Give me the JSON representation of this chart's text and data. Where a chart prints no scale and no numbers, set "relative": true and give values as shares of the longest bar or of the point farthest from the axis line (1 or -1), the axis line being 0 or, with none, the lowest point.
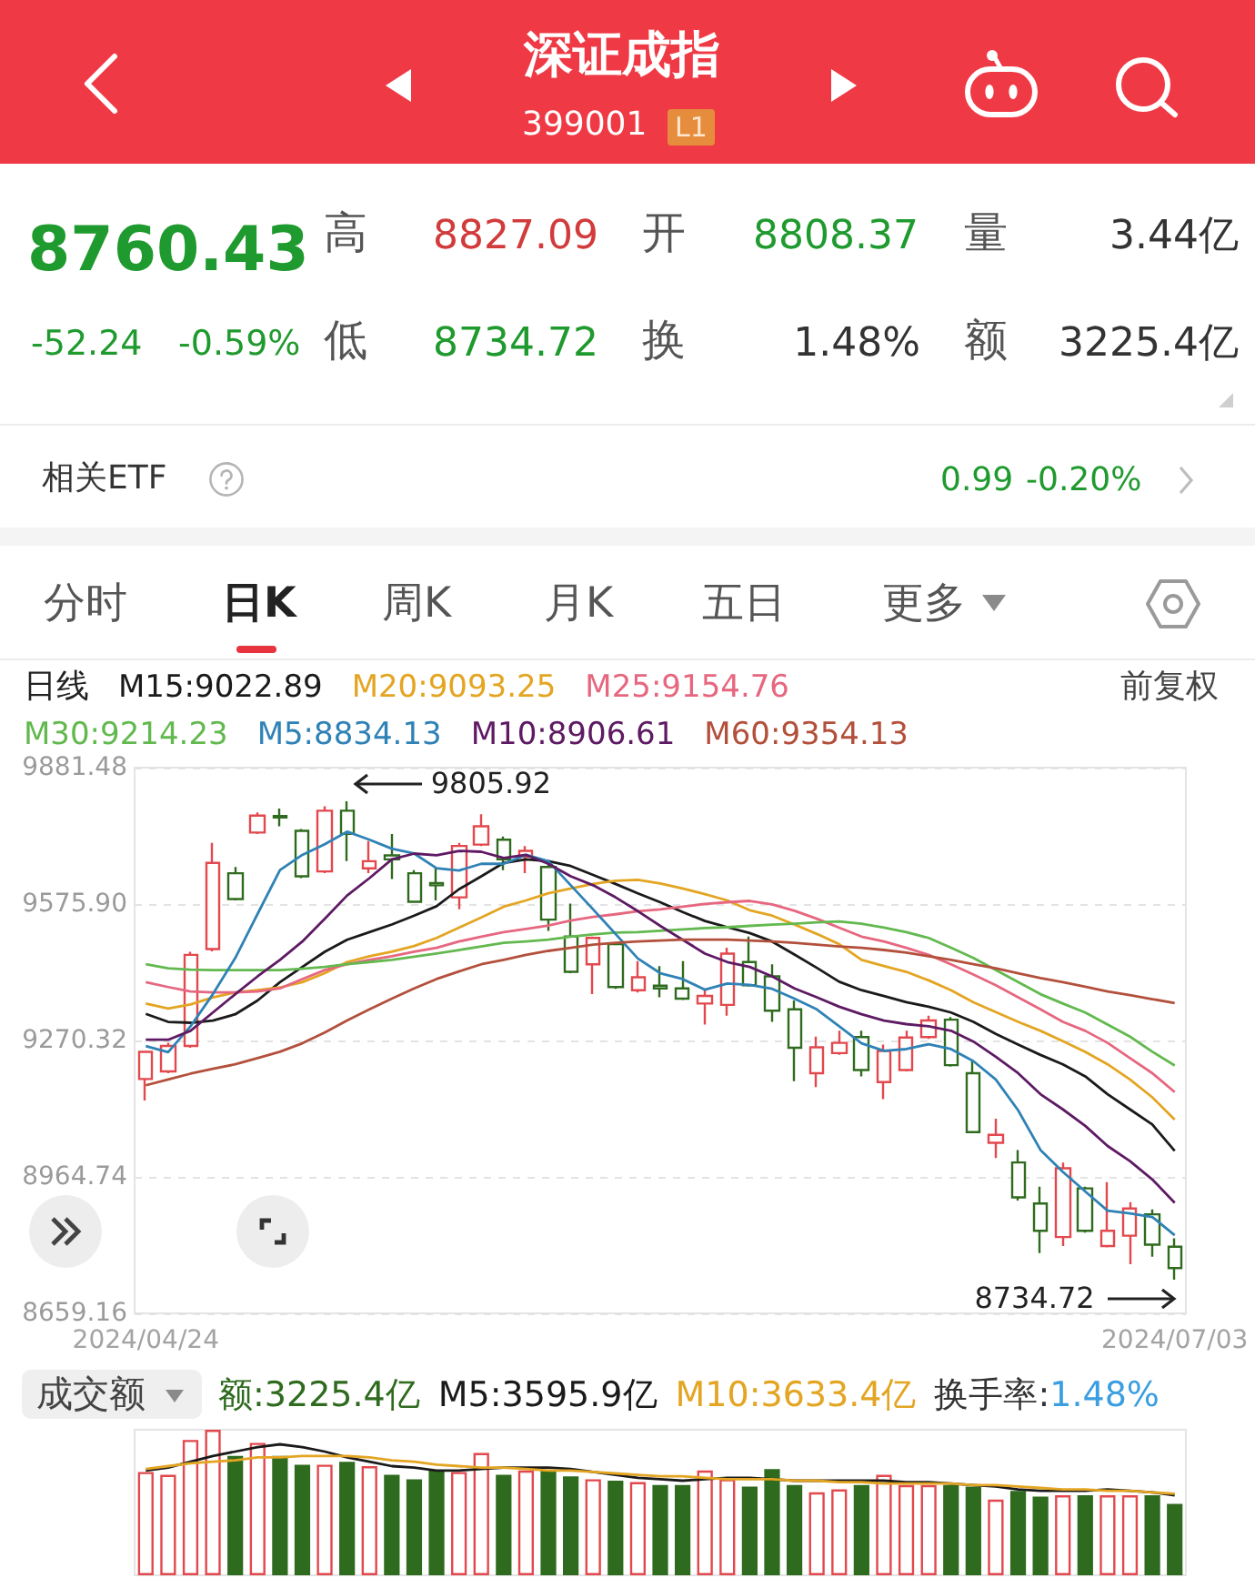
{
  "chart_data": [
    {
      "type": "other",
      "title": "深证成指",
      "subtitle": "399001",
      "annotations": [
        "L1",
        "8760.43",
        "-52.24",
        "-0.59%",
        "高",
        "8827.09",
        "开",
        "8808.37",
        "量",
        "3.44亿",
        "低",
        "8734.72",
        "换",
        "1.48%",
        "额",
        "3225.4亿",
        "相关ETF",
        "0.99",
        "-0.20%",
        "分时",
        "日K",
        "周K",
        "月K",
        "五日",
        "更多"
      ]
    },
    {
      "type": "candlestick",
      "legend_title": "日线",
      "legend": "top",
      "grid": "y",
      "marker": "none",
      "line_style": "solid",
      "categories": [
        "2024/04/24",
        null,
        null,
        null,
        null,
        null,
        null,
        null,
        null,
        null,
        null,
        null,
        null,
        null,
        null,
        null,
        null,
        null,
        null,
        null,
        null,
        null,
        null,
        null,
        null,
        null,
        null,
        null,
        null,
        null,
        null,
        null,
        null,
        null,
        null,
        null,
        null,
        null,
        null,
        null,
        null,
        null,
        null,
        null,
        null,
        null,
        "2024/07/03"
      ],
      "ylim": [
        8659.16,
        9881.48
      ],
      "yticks": [
        8659.16,
        8964.74,
        9270.32,
        {
          "value": 9575.9,
          "label": "9575.90"
        },
        9881.48
      ],
      "ohlc": [
        [
          9184,
          9247,
          9136,
          9245
        ],
        [
          9201,
          9265,
          9197,
          9258
        ],
        [
          9258,
          9469,
          9254,
          9462
        ],
        [
          9475,
          9713,
          9470,
          9668
        ],
        [
          9645,
          9659,
          9584,
          9587
        ],
        [
          9736,
          9781,
          9733,
          9774
        ],
        [
          9773,
          9790,
          9750,
          9770
        ],
        [
          9740,
          9744,
          9634,
          9638
        ],
        [
          9649,
          9795,
          9645,
          9785
        ],
        [
          9785,
          9805.92,
          9672,
          9733
        ],
        [
          9656,
          9717,
          9645,
          9672
        ],
        [
          9685,
          9733,
          9632,
          9676
        ],
        [
          9645,
          9652,
          9579,
          9581
        ],
        [
          9623,
          9659,
          9584,
          9618
        ],
        [
          9591,
          9713,
          9564,
          9706
        ],
        [
          9709,
          9777,
          9706,
          9750
        ],
        [
          9720,
          9727,
          9652,
          9676
        ],
        [
          9682,
          9706,
          9645,
          9695
        ],
        [
          9659,
          9666,
          9516,
          9541
        ],
        [
          9503,
          9577,
          9421,
          9424
        ],
        [
          9441,
          9503,
          9374,
          9500
        ],
        [
          9486,
          9489,
          9386,
          9390
        ],
        [
          9383,
          9448,
          9378,
          9412
        ],
        [
          9393,
          9437,
          9367,
          9387
        ],
        [
          9387,
          9448,
          9361,
          9364
        ],
        [
          9353,
          9387,
          9306,
          9370
        ],
        [
          9350,
          9478,
          9326,
          9465
        ],
        [
          9446,
          9503,
          9391,
          9394
        ],
        [
          9414,
          9441,
          9312,
          9337
        ],
        [
          9340,
          9360,
          9179,
          9254
        ],
        [
          9197,
          9279,
          9166,
          9255
        ],
        [
          9242,
          9292,
          9238,
          9265
        ],
        [
          9278,
          9292,
          9190,
          9204
        ],
        [
          9177,
          9261,
          9139,
          9247
        ],
        [
          9204,
          9292,
          9201,
          9277
        ],
        [
          9278,
          9326,
          9274,
          9315
        ],
        [
          9317,
          9323,
          9212,
          9215
        ],
        [
          9197,
          9224,
          9063,
          9065
        ],
        [
          9041,
          9095,
          9007,
          9059
        ],
        [
          8997,
          9025,
          8912,
          8919
        ],
        [
          8905,
          8943,
          8794,
          8844
        ],
        [
          8830,
          8997,
          8810,
          8984
        ],
        [
          8939,
          8943,
          8840,
          8844
        ],
        [
          8810,
          8953,
          8807,
          8844
        ],
        [
          8833,
          8908,
          8769,
          8894
        ],
        [
          8881,
          8892,
          8786,
          8813
        ],
        [
          8808.37,
          8827.09,
          8734.72,
          8760.43
        ]
      ],
      "colors": [
        "#e2484d",
        "#e2484d",
        "#e2484d",
        "#e2484d",
        "#2e6b1e",
        "#e2484d",
        "#2e6b1e",
        "#2e6b1e",
        "#e2484d",
        "#2e6b1e",
        "#e2484d",
        "#2e6b1e",
        "#2e6b1e",
        "#2e6b1e",
        "#e2484d",
        "#e2484d",
        "#2e6b1e",
        "#e2484d",
        "#2e6b1e",
        "#2e6b1e",
        "#e2484d",
        "#2e6b1e",
        "#e2484d",
        "#2e6b1e",
        "#2e6b1e",
        "#e2484d",
        "#e2484d",
        "#2e6b1e",
        "#2e6b1e",
        "#2e6b1e",
        "#e2484d",
        "#e2484d",
        "#2e6b1e",
        "#e2484d",
        "#e2484d",
        "#e2484d",
        "#2e6b1e",
        "#2e6b1e",
        "#e2484d",
        "#2e6b1e",
        "#2e6b1e",
        "#e2484d",
        "#2e6b1e",
        "#e2484d",
        "#e2484d",
        "#2e6b1e",
        "#2e6b1e"
      ],
      "series": [
        {
          "name": "M15:9022.89",
          "type": "line",
          "color": "#1a1a1a",
          "values": [
            9330,
            9312,
            9310,
            9315,
            9329,
            9360,
            9401,
            9435,
            9469,
            9496,
            9513,
            9530,
            9550,
            9571,
            9609,
            9638,
            9668,
            9676,
            9672,
            9661,
            9641,
            9621,
            9600,
            9580,
            9558,
            9538,
            9524,
            9511,
            9492,
            9463,
            9433,
            9402,
            9383,
            9370,
            9356,
            9346,
            9333,
            9312,
            9285,
            9261,
            9238,
            9217,
            9190,
            9150,
            9116,
            9082,
            9022.89
          ]
        },
        {
          "name": "M20:9093.25",
          "type": "line",
          "color": "#e3a522",
          "values": [
            9353,
            9342,
            9351,
            9367,
            9378,
            9383,
            9389,
            9401,
            9421,
            9446,
            9459,
            9469,
            9482,
            9500,
            9523,
            9546,
            9570,
            9584,
            9600,
            9611,
            9621,
            9628,
            9630,
            9622,
            9611,
            9598,
            9584,
            9562,
            9550,
            9530,
            9509,
            9486,
            9451,
            9437,
            9424,
            9405,
            9383,
            9356,
            9334,
            9312,
            9292,
            9269,
            9245,
            9217,
            9183,
            9143,
            9093.25
          ]
        },
        {
          "name": "M25:9154.76",
          "type": "line",
          "color": "#e6677f",
          "values": [
            9401,
            9390,
            9380,
            9378,
            9378,
            9380,
            9387,
            9408,
            9428,
            9441,
            9451,
            9459,
            9469,
            9478,
            9492,
            9503,
            9513,
            9520,
            9528,
            9539,
            9547,
            9553,
            9560,
            9564,
            9570,
            9576,
            9580,
            9583,
            9575,
            9561,
            9543,
            9523,
            9503,
            9492,
            9478,
            9462,
            9441,
            9418,
            9394,
            9367,
            9340,
            9312,
            9292,
            9265,
            9231,
            9197,
            9154.76
          ]
        },
        {
          "name": "M30:9214.23",
          "type": "line",
          "color": "#63b94f",
          "values": [
            9441,
            9432,
            9429,
            9428,
            9428,
            9428,
            9428,
            9431,
            9435,
            9441,
            9446,
            9451,
            9458,
            9465,
            9473,
            9481,
            9489,
            9492,
            9496,
            9503,
            9508,
            9512,
            9513,
            9516,
            9519,
            9522,
            9524,
            9527,
            9530,
            9532,
            9535,
            9537,
            9532,
            9523,
            9513,
            9500,
            9478,
            9455,
            9428,
            9401,
            9374,
            9353,
            9333,
            9306,
            9279,
            9245,
            9214.23
          ]
        },
        {
          "name": "M5:8834.13",
          "type": "line",
          "color": "#2f82b5",
          "values": [
            9258,
            9244,
            9302,
            9374,
            9455,
            9554,
            9652,
            9686,
            9710,
            9738,
            9720,
            9700,
            9689,
            9656,
            9651,
            9666,
            9666,
            9686,
            9672,
            9618,
            9564,
            9509,
            9454,
            9421,
            9408,
            9384,
            9398,
            9395,
            9386,
            9364,
            9340,
            9302,
            9264,
            9247,
            9251,
            9262,
            9251,
            9224,
            9183,
            9114,
            9025,
            8976,
            8932,
            8889,
            8883,
            8875,
            8834.13
          ]
        },
        {
          "name": "M10:8906.61",
          "type": "line",
          "color": "#5e1a63",
          "values": [
            9272,
            9272,
            9292,
            9333,
            9374,
            9414,
            9451,
            9492,
            9543,
            9595,
            9634,
            9676,
            9689,
            9685,
            9695,
            9693,
            9679,
            9686,
            9666,
            9638,
            9618,
            9591,
            9560,
            9527,
            9496,
            9465,
            9446,
            9435,
            9414,
            9387,
            9367,
            9346,
            9329,
            9315,
            9307,
            9302,
            9292,
            9268,
            9234,
            9197,
            9150,
            9116,
            9079,
            9034,
            9000,
            8959,
            8906.61
          ]
        },
        {
          "name": "M60:9354.13",
          "type": "line",
          "color": "#b3503c",
          "values": [
            9170,
            9183,
            9196,
            9207,
            9217,
            9231,
            9245,
            9264,
            9288,
            9315,
            9340,
            9364,
            9387,
            9408,
            9425,
            9441,
            9451,
            9462,
            9471,
            9478,
            9485,
            9489,
            9492,
            9494,
            9496,
            9496,
            9496,
            9494,
            9492,
            9489,
            9485,
            9481,
            9478,
            9473,
            9467,
            9459,
            9451,
            9441,
            9432,
            9421,
            9410,
            9401,
            9391,
            9380,
            9372,
            9363,
            9354.13
          ]
        }
      ],
      "annotations": [
        "前复权",
        "9805.92",
        {
          "text": "8734.72",
          "x": "2024/07/03",
          "y": 8734.72
        }
      ]
    },
    {
      "type": "bar",
      "relative": true,
      "title": "成交额",
      "legend": "top",
      "categories": [
        null,
        null,
        null,
        null,
        null,
        null,
        null,
        null,
        null,
        null,
        null,
        null,
        null,
        null,
        null,
        null,
        null,
        null,
        null,
        null,
        null,
        null,
        null,
        null,
        null,
        null,
        null,
        null,
        null,
        null,
        null,
        null,
        null,
        null,
        null,
        null,
        null,
        null,
        null,
        null,
        null,
        null,
        null,
        null,
        null,
        null,
        null
      ],
      "series": [
        {
          "name": "额:3225.4亿",
          "type": "bar",
          "colors": [
            "#e2484d",
            "#e2484d",
            "#e2484d",
            "#e2484d",
            "#2e6b1e",
            "#e2484d",
            "#2e6b1e",
            "#2e6b1e",
            "#e2484d",
            "#2e6b1e",
            "#e2484d",
            "#2e6b1e",
            "#2e6b1e",
            "#2e6b1e",
            "#e2484d",
            "#e2484d",
            "#2e6b1e",
            "#e2484d",
            "#2e6b1e",
            "#2e6b1e",
            "#e2484d",
            "#2e6b1e",
            "#e2484d",
            "#2e6b1e",
            "#2e6b1e",
            "#e2484d",
            "#e2484d",
            "#2e6b1e",
            "#2e6b1e",
            "#2e6b1e",
            "#e2484d",
            "#e2484d",
            "#2e6b1e",
            "#e2484d",
            "#e2484d",
            "#e2484d",
            "#2e6b1e",
            "#2e6b1e",
            "#e2484d",
            "#2e6b1e",
            "#2e6b1e",
            "#e2484d",
            "#2e6b1e",
            "#e2484d",
            "#e2484d",
            "#2e6b1e",
            "#2e6b1e"
          ],
          "values": [
            0.71,
            0.69,
            0.93,
            1,
            0.82,
            0.91,
            0.82,
            0.76,
            0.76,
            0.78,
            0.75,
            0.69,
            0.66,
            0.72,
            0.71,
            0.84,
            0.69,
            0.72,
            0.72,
            0.68,
            0.66,
            0.65,
            0.64,
            0.62,
            0.62,
            0.72,
            0.66,
            0.61,
            0.73,
            0.62,
            0.57,
            0.59,
            0.62,
            0.69,
            0.62,
            0.62,
            0.62,
            0.61,
            0.52,
            0.58,
            0.54,
            0.55,
            0.55,
            0.55,
            0.55,
            0.55,
            0.49
          ]
        },
        {
          "name": "M5:3595.9亿",
          "type": "line",
          "color": "#1a1a1a",
          "values": [
            0.72,
            0.74,
            0.78,
            0.82,
            0.85,
            0.88,
            0.9,
            0.88,
            0.85,
            0.81,
            0.78,
            0.75,
            0.74,
            0.72,
            0.72,
            0.73,
            0.74,
            0.74,
            0.74,
            0.73,
            0.71,
            0.69,
            0.67,
            0.66,
            0.65,
            0.66,
            0.67,
            0.67,
            0.66,
            0.65,
            0.65,
            0.65,
            0.65,
            0.65,
            0.64,
            0.64,
            0.63,
            0.62,
            0.61,
            0.59,
            0.58,
            0.58,
            0.58,
            0.59,
            0.58,
            0.57,
            0.55
          ]
        },
        {
          "name": "M10:3633.4亿",
          "type": "line",
          "color": "#e3a522",
          "values": [
            0.73,
            0.75,
            0.77,
            0.78,
            0.79,
            0.81,
            0.81,
            0.82,
            0.82,
            0.82,
            0.81,
            0.79,
            0.78,
            0.76,
            0.75,
            0.74,
            0.74,
            0.73,
            0.72,
            0.72,
            0.71,
            0.7,
            0.69,
            0.68,
            0.68,
            0.67,
            0.66,
            0.66,
            0.66,
            0.65,
            0.65,
            0.64,
            0.64,
            0.63,
            0.63,
            0.63,
            0.63,
            0.62,
            0.62,
            0.61,
            0.6,
            0.59,
            0.59,
            0.58,
            0.58,
            0.57,
            0.56
          ]
        }
      ],
      "annotations": [
        "换手率:1.48%"
      ]
    }
  ]
}
